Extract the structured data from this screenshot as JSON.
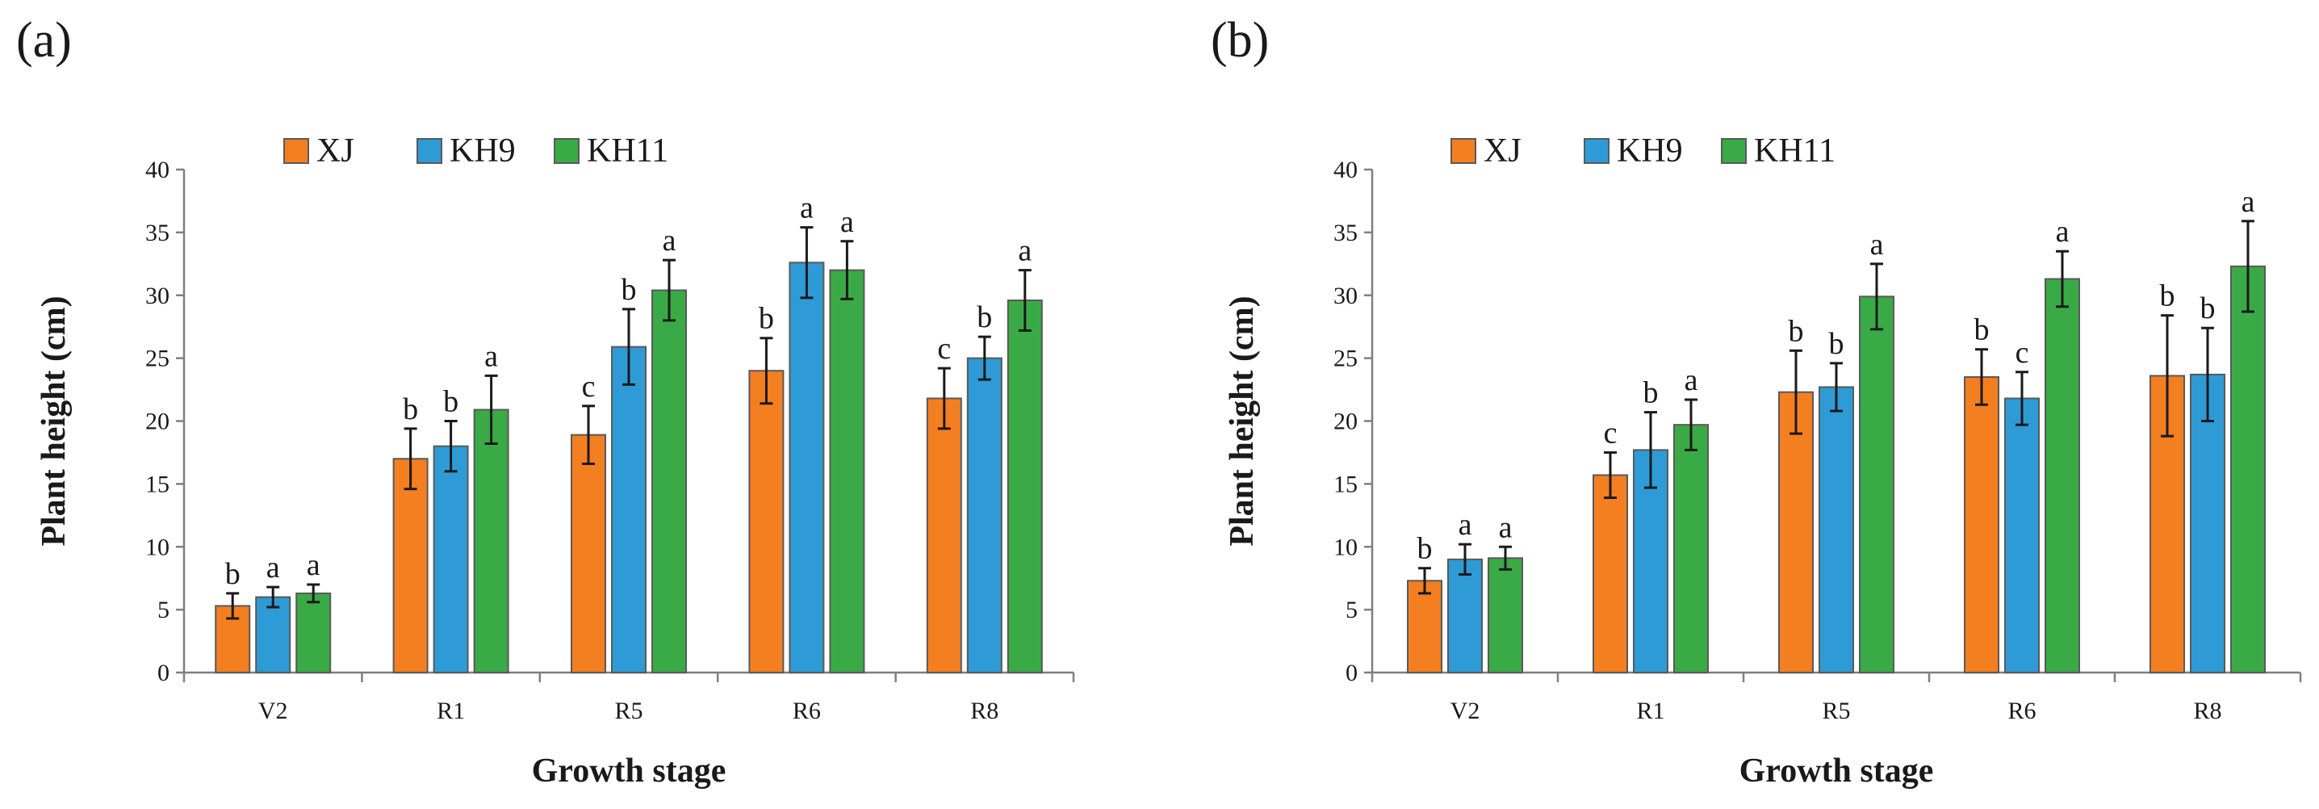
{
  "chart_data": [
    {
      "type": "bar",
      "panel_label": "(a)",
      "categories": [
        "V2",
        "R1",
        "R5",
        "R6",
        "R8"
      ],
      "series": [
        {
          "name": "XJ",
          "color": "#f47f20",
          "values": [
            5.3,
            17.0,
            18.9,
            24.0,
            21.8
          ],
          "errors": [
            1.0,
            2.4,
            2.3,
            2.6,
            2.4
          ],
          "letters": [
            "b",
            "b",
            "c",
            "b",
            "c"
          ]
        },
        {
          "name": "KH9",
          "color": "#2e9bd6",
          "values": [
            6.0,
            18.0,
            25.9,
            32.6,
            25.0
          ],
          "errors": [
            0.8,
            2.0,
            3.0,
            2.8,
            1.7
          ],
          "letters": [
            "a",
            "b",
            "b",
            "a",
            "b"
          ]
        },
        {
          "name": "KH11",
          "color": "#3aaa47",
          "values": [
            6.3,
            20.9,
            30.4,
            32.0,
            29.6
          ],
          "errors": [
            0.7,
            2.7,
            2.4,
            2.3,
            2.4
          ],
          "letters": [
            "a",
            "a",
            "a",
            "a",
            "a"
          ]
        }
      ],
      "xlabel": "Growth stage",
      "ylabel": "Plant height (cm)",
      "ylim": [
        0,
        40
      ],
      "yticks": [
        "0",
        "5",
        "10",
        "15",
        "20",
        "25",
        "30",
        "35",
        "40"
      ],
      "grid": false,
      "legend_position": "top-left"
    },
    {
      "type": "bar",
      "panel_label": "(b)",
      "categories": [
        "V2",
        "R1",
        "R5",
        "R6",
        "R8"
      ],
      "series": [
        {
          "name": "XJ",
          "color": "#f47f20",
          "values": [
            7.3,
            15.7,
            22.3,
            23.5,
            23.6
          ],
          "errors": [
            1.0,
            1.8,
            3.3,
            2.2,
            4.8
          ],
          "letters": [
            "b",
            "c",
            "b",
            "b",
            "b"
          ]
        },
        {
          "name": "KH9",
          "color": "#2e9bd6",
          "values": [
            9.0,
            17.7,
            22.7,
            21.8,
            23.7
          ],
          "errors": [
            1.2,
            3.0,
            1.9,
            2.1,
            3.7
          ],
          "letters": [
            "a",
            "b",
            "b",
            "c",
            "b"
          ]
        },
        {
          "name": "KH11",
          "color": "#3aaa47",
          "values": [
            9.1,
            19.7,
            29.9,
            31.3,
            32.3
          ],
          "errors": [
            0.9,
            2.0,
            2.6,
            2.2,
            3.6
          ],
          "letters": [
            "a",
            "a",
            "a",
            "a",
            "a"
          ]
        }
      ],
      "xlabel": "Growth stage",
      "ylabel": "Plant height (cm)",
      "ylim": [
        0,
        40
      ],
      "yticks": [
        "0",
        "5",
        "10",
        "15",
        "20",
        "25",
        "30",
        "35",
        "40"
      ],
      "grid": false,
      "legend_position": "top-left"
    }
  ]
}
